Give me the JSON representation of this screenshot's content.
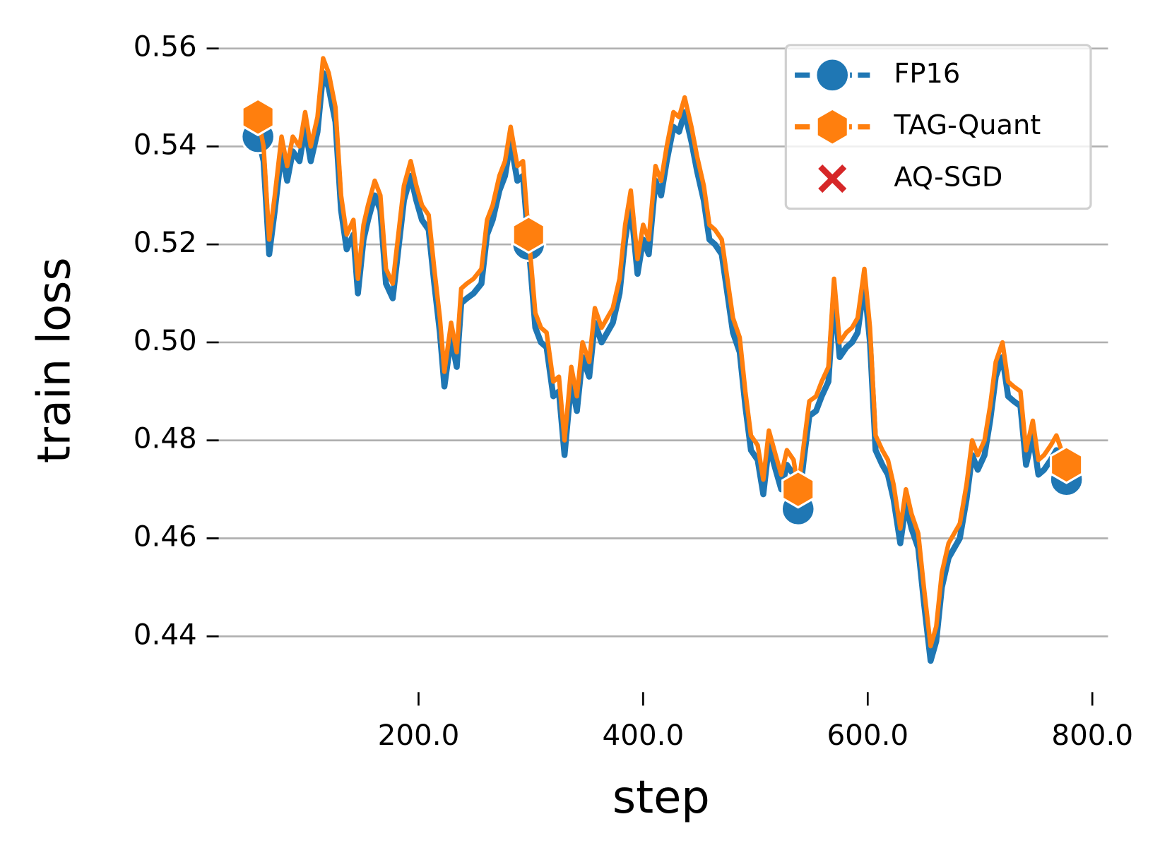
{
  "chart_data": {
    "type": "line",
    "xlabel": "step",
    "ylabel": "train loss",
    "x": [
      57,
      62,
      67,
      72,
      78,
      83,
      88,
      94,
      99,
      104,
      110,
      115,
      120,
      126,
      131,
      136,
      142,
      146,
      151,
      155,
      161,
      166,
      171,
      177,
      182,
      187,
      193,
      198,
      203,
      209,
      214,
      219,
      223,
      229,
      234,
      238,
      243,
      249,
      256,
      261,
      266,
      272,
      277,
      282,
      288,
      293,
      298,
      304,
      309,
      314,
      320,
      325,
      330,
      336,
      341,
      346,
      352,
      357,
      363,
      368,
      373,
      379,
      384,
      389,
      395,
      400,
      405,
      411,
      416,
      421,
      427,
      432,
      437,
      443,
      448,
      454,
      459,
      464,
      470,
      475,
      480,
      486,
      491,
      496,
      502,
      507,
      512,
      518,
      523,
      528,
      534,
      538,
      543,
      548,
      554,
      559,
      565,
      570,
      575,
      581,
      586,
      591,
      597,
      602,
      607,
      613,
      618,
      623,
      629,
      634,
      639,
      645,
      650,
      656,
      661,
      666,
      672,
      677,
      682,
      688,
      693,
      698,
      704,
      709,
      714,
      720,
      725,
      730,
      736,
      741,
      747,
      752,
      757,
      763,
      768,
      777
    ],
    "series": [
      {
        "name": "FP16",
        "color": "#1f77b4",
        "marker": "o",
        "values": [
          0.542,
          0.537,
          0.518,
          0.527,
          0.539,
          0.533,
          0.539,
          0.537,
          0.544,
          0.537,
          0.543,
          0.555,
          0.552,
          0.545,
          0.527,
          0.519,
          0.522,
          0.51,
          0.521,
          0.525,
          0.53,
          0.527,
          0.512,
          0.509,
          0.519,
          0.529,
          0.534,
          0.529,
          0.525,
          0.523,
          0.512,
          0.502,
          0.491,
          0.501,
          0.495,
          0.508,
          0.509,
          0.51,
          0.512,
          0.522,
          0.525,
          0.531,
          0.534,
          0.541,
          0.533,
          0.534,
          0.52,
          0.503,
          0.5,
          0.499,
          0.489,
          0.49,
          0.477,
          0.492,
          0.486,
          0.497,
          0.493,
          0.504,
          0.5,
          0.502,
          0.504,
          0.51,
          0.521,
          0.528,
          0.514,
          0.521,
          0.518,
          0.533,
          0.53,
          0.537,
          0.544,
          0.543,
          0.547,
          0.541,
          0.535,
          0.529,
          0.521,
          0.52,
          0.518,
          0.51,
          0.502,
          0.498,
          0.487,
          0.478,
          0.476,
          0.469,
          0.479,
          0.474,
          0.47,
          0.475,
          0.473,
          0.466,
          0.476,
          0.485,
          0.486,
          0.489,
          0.492,
          0.51,
          0.497,
          0.499,
          0.5,
          0.502,
          0.512,
          0.5,
          0.478,
          0.475,
          0.473,
          0.468,
          0.459,
          0.467,
          0.462,
          0.458,
          0.447,
          0.435,
          0.439,
          0.45,
          0.456,
          0.458,
          0.46,
          0.468,
          0.477,
          0.474,
          0.477,
          0.484,
          0.493,
          0.497,
          0.489,
          0.488,
          0.487,
          0.475,
          0.481,
          0.473,
          0.474,
          0.476,
          0.478,
          0.472
        ]
      },
      {
        "name": "TAG-Quant",
        "color": "#ff7f0e",
        "marker": "h",
        "values": [
          0.546,
          0.54,
          0.521,
          0.53,
          0.542,
          0.536,
          0.542,
          0.54,
          0.547,
          0.54,
          0.546,
          0.558,
          0.555,
          0.548,
          0.53,
          0.522,
          0.525,
          0.513,
          0.524,
          0.528,
          0.533,
          0.53,
          0.515,
          0.512,
          0.522,
          0.532,
          0.537,
          0.532,
          0.528,
          0.526,
          0.515,
          0.505,
          0.494,
          0.504,
          0.498,
          0.511,
          0.512,
          0.513,
          0.515,
          0.525,
          0.528,
          0.534,
          0.537,
          0.544,
          0.536,
          0.537,
          0.522,
          0.506,
          0.503,
          0.502,
          0.492,
          0.493,
          0.48,
          0.495,
          0.489,
          0.5,
          0.496,
          0.507,
          0.503,
          0.505,
          0.507,
          0.513,
          0.524,
          0.531,
          0.517,
          0.524,
          0.521,
          0.536,
          0.533,
          0.54,
          0.547,
          0.546,
          0.55,
          0.544,
          0.538,
          0.532,
          0.524,
          0.523,
          0.521,
          0.513,
          0.505,
          0.501,
          0.49,
          0.481,
          0.479,
          0.472,
          0.482,
          0.477,
          0.473,
          0.478,
          0.476,
          0.47,
          0.479,
          0.488,
          0.489,
          0.492,
          0.495,
          0.513,
          0.5,
          0.502,
          0.503,
          0.505,
          0.515,
          0.503,
          0.481,
          0.478,
          0.476,
          0.471,
          0.462,
          0.47,
          0.465,
          0.461,
          0.45,
          0.438,
          0.442,
          0.453,
          0.459,
          0.461,
          0.463,
          0.471,
          0.48,
          0.477,
          0.48,
          0.487,
          0.496,
          0.5,
          0.492,
          0.491,
          0.49,
          0.478,
          0.484,
          0.476,
          0.477,
          0.479,
          0.481,
          0.475
        ]
      },
      {
        "name": "AQ-SGD",
        "color": "#d62728",
        "marker": "x",
        "values": [
          null,
          null,
          null,
          null,
          null,
          null,
          null,
          null,
          null,
          null,
          null,
          null,
          null,
          null,
          null,
          null,
          null,
          null,
          null,
          null,
          null,
          null,
          null,
          null,
          null,
          null,
          null,
          null,
          null,
          null,
          null,
          null,
          null,
          null,
          null,
          null,
          null,
          null,
          null,
          null,
          null,
          null,
          null,
          null,
          null,
          null,
          null,
          null,
          null,
          null,
          null,
          null,
          null,
          null,
          null,
          null,
          null,
          null,
          null,
          null,
          null,
          null,
          null,
          null,
          null,
          null,
          null,
          null,
          null,
          null,
          null,
          null,
          null,
          null,
          null,
          null,
          null,
          null,
          null,
          null,
          null,
          null,
          null,
          null,
          null,
          null,
          null,
          null,
          null,
          null,
          null,
          null,
          null,
          null,
          null,
          null,
          null,
          null,
          null,
          null,
          null,
          null,
          null,
          null,
          null,
          null,
          null,
          null,
          null,
          null,
          null,
          null,
          null,
          null,
          null,
          null,
          null,
          null,
          null,
          null,
          null,
          null,
          null,
          null,
          null,
          null,
          null,
          null,
          null,
          null,
          null,
          null,
          null,
          null,
          null,
          null
        ]
      }
    ],
    "xlim": [
      10,
      820
    ],
    "xticks": [
      {
        "value": 200,
        "label": "200.0"
      },
      {
        "value": 400,
        "label": "400.0"
      },
      {
        "value": 600,
        "label": "600.0"
      },
      {
        "value": 800,
        "label": "800.0"
      }
    ],
    "ylim": [
      0.428,
      0.563
    ],
    "yticks": [
      0.44,
      0.46,
      0.48,
      {
        "value": 0.5,
        "label": "0.50"
      },
      0.52,
      0.54,
      0.56
    ],
    "grid": true,
    "legend": "upper right"
  }
}
